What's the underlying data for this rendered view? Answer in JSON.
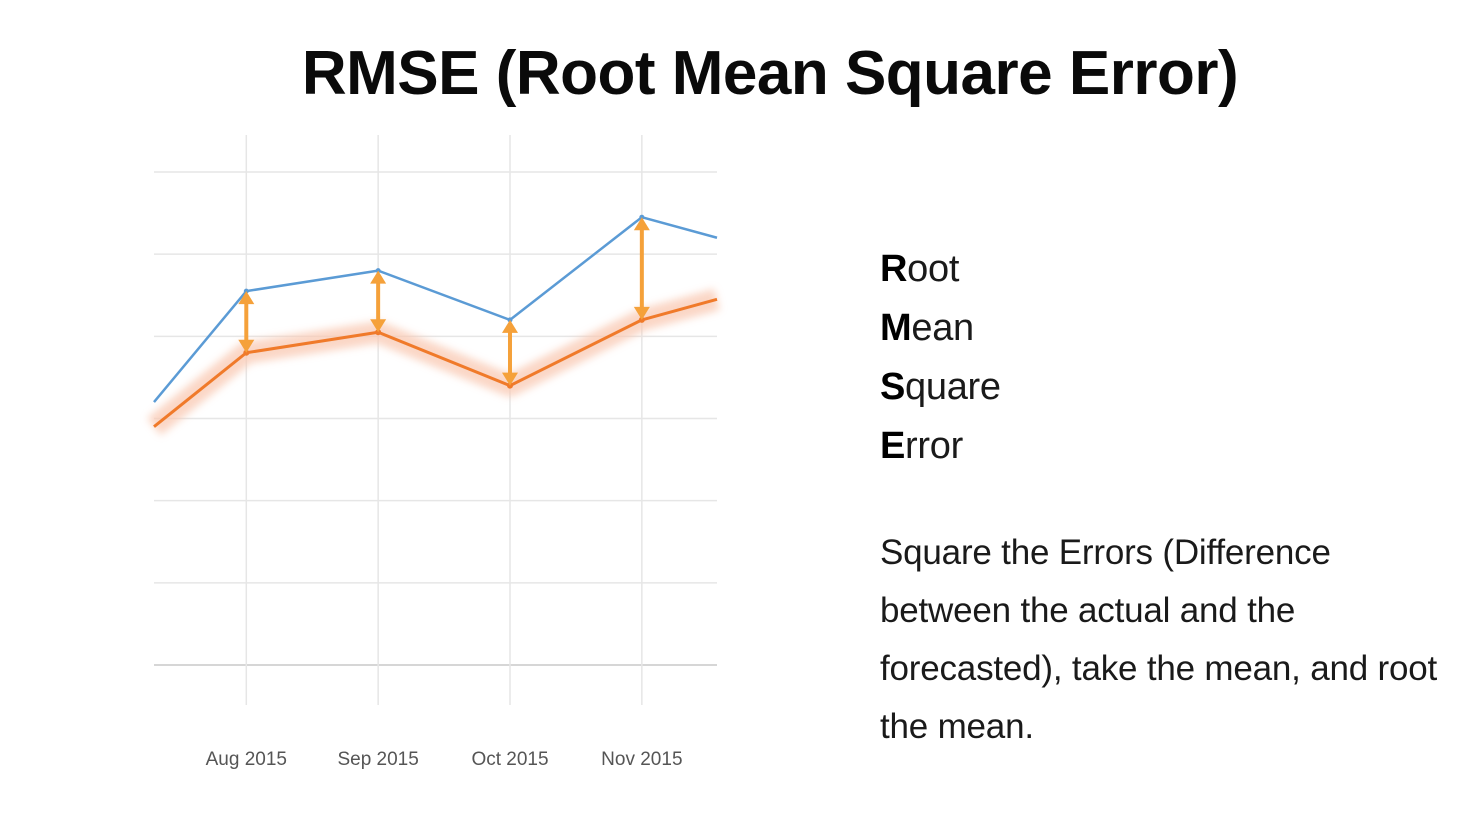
{
  "slide": {
    "title": "RMSE (Root Mean Square Error)"
  },
  "acronym": [
    {
      "initial": "R",
      "rest": "oot"
    },
    {
      "initial": "M",
      "rest": "ean"
    },
    {
      "initial": "S",
      "rest": "quare"
    },
    {
      "initial": "E",
      "rest": "rror"
    }
  ],
  "explanation": "Square the Errors (Difference between the actual and the forecasted), take the mean, and root the mean.",
  "colors": {
    "actual": "#5b9bd5",
    "forecast": "#f07a2a",
    "forecast_band": "#f9c9b3",
    "error_arrow": "#f5a13a",
    "grid": "#e6e6e6",
    "axis": "#d6d6d6",
    "tick_text": "#555555"
  },
  "chart_data": {
    "type": "line",
    "title": "",
    "xlabel": "",
    "ylabel": "",
    "x_tick_labels": [
      "Aug 2015",
      "Sep 2015",
      "Oct 2015",
      "Nov 2015"
    ],
    "x_range": [
      0.3,
      4.57
    ],
    "ylim": [
      0,
      6
    ],
    "grid": true,
    "series": [
      {
        "role": "actual",
        "x": [
          0.3,
          1,
          2,
          3,
          4,
          4.57
        ],
        "values": [
          3.2,
          4.55,
          4.8,
          4.2,
          5.45,
          5.2
        ]
      },
      {
        "role": "forecast",
        "x": [
          0.3,
          1,
          2,
          3,
          4,
          4.57
        ],
        "values": [
          2.9,
          3.8,
          4.05,
          3.4,
          4.2,
          4.45
        ]
      }
    ],
    "error_markers": [
      {
        "x": 1,
        "actual": 4.55,
        "forecast": 3.8
      },
      {
        "x": 2,
        "actual": 4.8,
        "forecast": 4.05
      },
      {
        "x": 3,
        "actual": 4.2,
        "forecast": 3.4
      },
      {
        "x": 4,
        "actual": 5.45,
        "forecast": 4.2
      }
    ]
  }
}
